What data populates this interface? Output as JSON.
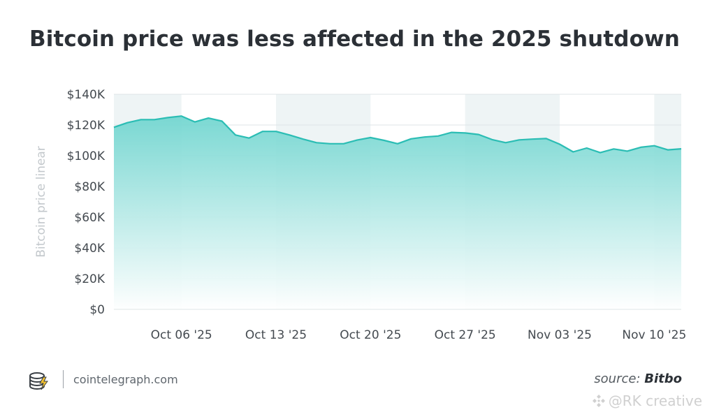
{
  "title": "Bitcoin price was less affected in the 2025 shutdown",
  "footer": {
    "site": "cointelegraph.com",
    "source_prefix": "source:",
    "source_name": "Bitbo"
  },
  "watermark": "@RK creative",
  "colors": {
    "line": "#2bbdb4",
    "fill_top": "#6fd5cf",
    "fill_bottom": "#ffffff",
    "band": "#eef4f5",
    "grid": "#dfe5e7"
  },
  "chart_data": {
    "type": "area",
    "title": "Bitcoin price was less affected in the 2025 shutdown",
    "ylabel": "Bitcoin price linear",
    "xlabel": "",
    "ylim": [
      0,
      140000
    ],
    "yticks": [
      0,
      20000,
      40000,
      60000,
      80000,
      100000,
      120000,
      140000
    ],
    "ytick_labels": [
      "$0",
      "$20K",
      "$40K",
      "$60K",
      "$80K",
      "$100K",
      "$120K",
      "$140K"
    ],
    "xlim": [
      "2025-10-01",
      "2025-11-12"
    ],
    "xticks": [
      "2025-10-06",
      "2025-10-13",
      "2025-10-20",
      "2025-10-27",
      "2025-11-03",
      "2025-11-10"
    ],
    "xtick_labels": [
      "Oct 06 '25",
      "Oct 13 '25",
      "Oct 20 '25",
      "Oct 27 '25",
      "Nov 03 '25",
      "Nov 10 '25"
    ],
    "grid": true,
    "series": [
      {
        "x": [
          "2025-10-01",
          "2025-10-02",
          "2025-10-03",
          "2025-10-04",
          "2025-10-05",
          "2025-10-06",
          "2025-10-07",
          "2025-10-08",
          "2025-10-09",
          "2025-10-10",
          "2025-10-11",
          "2025-10-12",
          "2025-10-13",
          "2025-10-14",
          "2025-10-15",
          "2025-10-16",
          "2025-10-17",
          "2025-10-18",
          "2025-10-19",
          "2025-10-20",
          "2025-10-21",
          "2025-10-22",
          "2025-10-23",
          "2025-10-24",
          "2025-10-25",
          "2025-10-26",
          "2025-10-27",
          "2025-10-28",
          "2025-10-29",
          "2025-10-30",
          "2025-10-31",
          "2025-11-01",
          "2025-11-02",
          "2025-11-03",
          "2025-11-04",
          "2025-11-05",
          "2025-11-06",
          "2025-11-07",
          "2025-11-08",
          "2025-11-09",
          "2025-11-10",
          "2025-11-11",
          "2025-11-12"
        ],
        "values": [
          118500,
          121500,
          123500,
          123500,
          124800,
          125800,
          122000,
          124500,
          122500,
          113500,
          111500,
          115800,
          115800,
          113500,
          110800,
          108500,
          107800,
          107800,
          110200,
          111800,
          110000,
          107800,
          111000,
          112200,
          112800,
          115200,
          114800,
          113800,
          110500,
          108500,
          110300,
          110800,
          111200,
          107500,
          102500,
          105000,
          102000,
          104400,
          103000,
          105500,
          106500,
          103800,
          104500
        ]
      }
    ]
  }
}
